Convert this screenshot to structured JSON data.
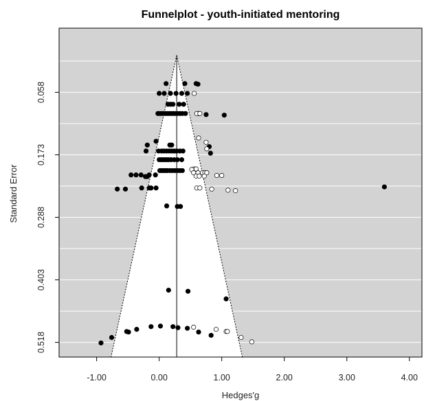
{
  "chart_data": {
    "type": "scatter",
    "subtype": "funnel",
    "title": "Funnelplot - youth-initiated mentoring",
    "xlabel": "Hedges'g",
    "ylabel": "Standard Error",
    "xlim": [
      -1.6,
      4.2
    ],
    "ylim": [
      0.545,
      -0.06
    ],
    "y_reversed": true,
    "grid": "horizontal",
    "background_color": "#d3d3d3",
    "funnel_color": "#ffffff",
    "x_ticks": [
      -1.0,
      0.0,
      1.0,
      2.0,
      3.0,
      4.0
    ],
    "x_tick_labels": [
      "-1.00",
      "0.00",
      "1.00",
      "2.00",
      "3.00",
      "4.00"
    ],
    "y_ticks": [
      0.058,
      0.173,
      0.288,
      0.403,
      0.518
    ],
    "y_tick_labels": [
      "0.058",
      "0.173",
      "0.288",
      "0.403",
      "0.518"
    ],
    "pooled_effect": 0.28,
    "funnel": {
      "apex": [
        0.28,
        -0.01
      ],
      "base_se": 0.545,
      "base_left": -0.77,
      "base_right": 1.33
    },
    "series": [
      {
        "marker": "filled",
        "color": "#000000",
        "points": [
          [
            0.11,
            0.042
          ],
          [
            0.41,
            0.042
          ],
          [
            0.59,
            0.042
          ],
          [
            0.62,
            0.043
          ],
          [
            0.0,
            0.06
          ],
          [
            0.08,
            0.06
          ],
          [
            0.18,
            0.06
          ],
          [
            0.27,
            0.06
          ],
          [
            0.36,
            0.06
          ],
          [
            0.45,
            0.06
          ],
          [
            0.14,
            0.08
          ],
          [
            0.18,
            0.08
          ],
          [
            0.22,
            0.08
          ],
          [
            0.32,
            0.08
          ],
          [
            0.39,
            0.08
          ],
          [
            -0.02,
            0.097
          ],
          [
            0.01,
            0.097
          ],
          [
            0.04,
            0.097
          ],
          [
            0.07,
            0.097
          ],
          [
            0.1,
            0.097
          ],
          [
            0.13,
            0.097
          ],
          [
            0.16,
            0.097
          ],
          [
            0.19,
            0.097
          ],
          [
            0.22,
            0.097
          ],
          [
            0.25,
            0.097
          ],
          [
            0.29,
            0.097
          ],
          [
            0.33,
            0.097
          ],
          [
            0.37,
            0.097
          ],
          [
            0.42,
            0.097
          ],
          [
            0.63,
            0.097
          ],
          [
            0.75,
            0.099
          ],
          [
            1.04,
            0.1
          ],
          [
            -0.05,
            0.148
          ],
          [
            -0.19,
            0.155
          ],
          [
            0.17,
            0.155
          ],
          [
            0.2,
            0.155
          ],
          [
            0.8,
            0.158
          ],
          [
            -0.21,
            0.166
          ],
          [
            -0.01,
            0.166
          ],
          [
            0.04,
            0.166
          ],
          [
            0.08,
            0.166
          ],
          [
            0.12,
            0.166
          ],
          [
            0.16,
            0.166
          ],
          [
            0.2,
            0.166
          ],
          [
            0.24,
            0.166
          ],
          [
            0.28,
            0.166
          ],
          [
            0.33,
            0.166
          ],
          [
            0.38,
            0.166
          ],
          [
            0.82,
            0.17
          ],
          [
            0.0,
            0.182
          ],
          [
            0.03,
            0.182
          ],
          [
            0.06,
            0.182
          ],
          [
            0.09,
            0.182
          ],
          [
            0.12,
            0.182
          ],
          [
            0.15,
            0.182
          ],
          [
            0.19,
            0.182
          ],
          [
            0.24,
            0.182
          ],
          [
            0.29,
            0.182
          ],
          [
            0.36,
            0.182
          ],
          [
            0.01,
            0.202
          ],
          [
            0.04,
            0.202
          ],
          [
            0.07,
            0.202
          ],
          [
            0.1,
            0.202
          ],
          [
            0.13,
            0.202
          ],
          [
            0.17,
            0.202
          ],
          [
            0.21,
            0.202
          ],
          [
            0.25,
            0.202
          ],
          [
            0.29,
            0.202
          ],
          [
            0.33,
            0.202
          ],
          [
            0.37,
            0.202
          ],
          [
            -0.45,
            0.21
          ],
          [
            -0.37,
            0.21
          ],
          [
            -0.29,
            0.21
          ],
          [
            -0.16,
            0.21
          ],
          [
            -0.06,
            0.21
          ],
          [
            -0.22,
            0.213
          ],
          [
            -0.19,
            0.213
          ],
          [
            -0.67,
            0.236
          ],
          [
            -0.54,
            0.236
          ],
          [
            -0.28,
            0.234
          ],
          [
            -0.13,
            0.234
          ],
          [
            -0.05,
            0.234
          ],
          [
            -0.16,
            0.234
          ],
          [
            3.6,
            0.232
          ],
          [
            0.12,
            0.267
          ],
          [
            0.29,
            0.268
          ],
          [
            0.34,
            0.268
          ],
          [
            0.15,
            0.422
          ],
          [
            0.46,
            0.424
          ],
          [
            1.07,
            0.438
          ],
          [
            -0.93,
            0.519
          ],
          [
            -0.76,
            0.509
          ],
          [
            -0.52,
            0.498
          ],
          [
            -0.49,
            0.499
          ],
          [
            -0.36,
            0.494
          ],
          [
            -0.13,
            0.489
          ],
          [
            0.02,
            0.488
          ],
          [
            0.22,
            0.489
          ],
          [
            0.3,
            0.491
          ],
          [
            0.45,
            0.492
          ],
          [
            0.63,
            0.499
          ],
          [
            0.83,
            0.505
          ]
        ]
      },
      {
        "marker": "open",
        "color": "#000000",
        "points": [
          [
            0.56,
            0.06
          ],
          [
            0.6,
            0.097
          ],
          [
            0.65,
            0.097
          ],
          [
            0.63,
            0.142
          ],
          [
            0.75,
            0.15
          ],
          [
            0.76,
            0.162
          ],
          [
            0.56,
            0.199
          ],
          [
            0.59,
            0.199
          ],
          [
            0.52,
            0.2
          ],
          [
            0.55,
            0.206
          ],
          [
            0.62,
            0.206
          ],
          [
            0.69,
            0.206
          ],
          [
            0.73,
            0.206
          ],
          [
            0.76,
            0.206
          ],
          [
            0.59,
            0.212
          ],
          [
            0.64,
            0.212
          ],
          [
            0.72,
            0.212
          ],
          [
            0.92,
            0.211
          ],
          [
            1.0,
            0.211
          ],
          [
            0.6,
            0.234
          ],
          [
            0.65,
            0.234
          ],
          [
            0.84,
            0.236
          ],
          [
            1.1,
            0.238
          ],
          [
            1.22,
            0.239
          ],
          [
            0.55,
            0.49
          ],
          [
            0.91,
            0.494
          ],
          [
            1.07,
            0.498
          ],
          [
            1.09,
            0.498
          ],
          [
            1.31,
            0.509
          ],
          [
            1.48,
            0.517
          ]
        ]
      }
    ]
  }
}
